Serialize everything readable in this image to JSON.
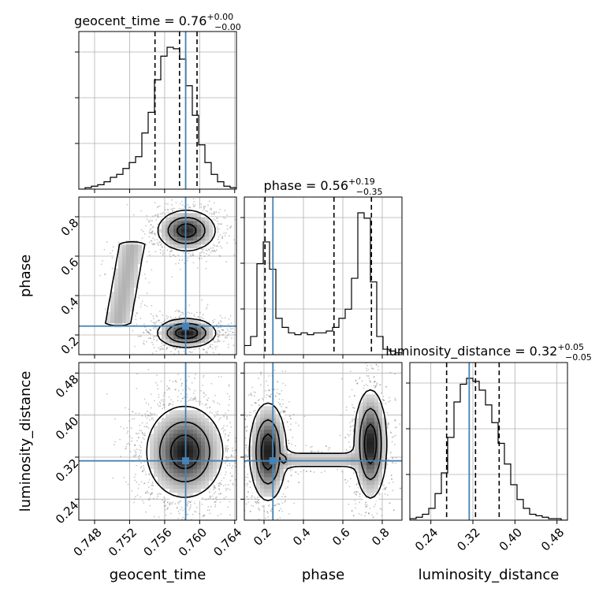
{
  "chart_data": {
    "type": "corner",
    "parameters": [
      {
        "name": "geocent_time",
        "axis_label": "geocent_time",
        "title": "geocent_time = 0.76",
        "title_plus": "+0.00",
        "title_minus": "−0.00",
        "range": [
          0.7462,
          0.7642
        ],
        "ticks": [
          0.748,
          0.752,
          0.756,
          0.76,
          0.764
        ],
        "tick_labels": [
          "0.748",
          "0.752",
          "0.756",
          "0.760",
          "0.764"
        ],
        "truth": 0.7584,
        "quantiles": [
          0.7549,
          0.7577,
          0.7597
        ],
        "hist_bins": 25,
        "hist_counts": [
          0,
          1,
          2,
          3,
          5,
          8,
          10,
          14,
          18,
          22,
          38,
          52,
          74,
          90,
          96,
          95,
          88,
          70,
          50,
          30,
          18,
          10,
          5,
          2,
          1
        ]
      },
      {
        "name": "phase",
        "axis_label": "phase",
        "title": "phase = 0.56",
        "title_plus": "+0.19",
        "title_minus": "−0.35",
        "range": [
          0.1,
          0.9
        ],
        "ticks": [
          0.2,
          0.4,
          0.6,
          0.8
        ],
        "tick_labels": [
          "0.2",
          "0.4",
          "0.6",
          "0.8"
        ],
        "truth": 0.245,
        "quantiles": [
          0.205,
          0.555,
          0.745
        ],
        "hist_bins": 25,
        "hist_counts": [
          5,
          10,
          50,
          62,
          47,
          20,
          15,
          12,
          11,
          12,
          11,
          12,
          12,
          13,
          15,
          20,
          25,
          42,
          78,
          75,
          40,
          10,
          3,
          2,
          1
        ]
      },
      {
        "name": "luminosity_distance",
        "axis_label": "luminosity_distance",
        "title": "luminosity_distance = 0.32",
        "title_plus": "+0.05",
        "title_minus": "−0.05",
        "range": [
          0.2,
          0.5
        ],
        "ticks": [
          0.24,
          0.32,
          0.4,
          0.48
        ],
        "tick_labels": [
          "0.24",
          "0.32",
          "0.40",
          "0.48"
        ],
        "truth": 0.313,
        "quantiles": [
          0.27,
          0.325,
          0.37
        ],
        "hist_bins": 25,
        "hist_counts": [
          1,
          2,
          4,
          8,
          18,
          32,
          56,
          80,
          92,
          96,
          94,
          88,
          78,
          66,
          52,
          38,
          24,
          14,
          8,
          4,
          3,
          2,
          1,
          1,
          0
        ]
      }
    ],
    "joint": [
      {
        "x": "geocent_time",
        "y": "phase",
        "modes": [
          {
            "x": 0.7585,
            "y": 0.73,
            "sx": 0.0016,
            "sy": 0.05,
            "w": 1.0
          },
          {
            "x": 0.7585,
            "y": 0.21,
            "sx": 0.0016,
            "sy": 0.035,
            "w": 1.1
          }
        ],
        "bridge": {
          "x": 0.7515,
          "y0": 0.25,
          "y1": 0.68,
          "sx": 0.001,
          "w": 0.35
        }
      },
      {
        "x": "geocent_time",
        "y": "luminosity_distance",
        "modes": [
          {
            "x": 0.7583,
            "y": 0.33,
            "sx": 0.0021,
            "sy": 0.042,
            "w": 1.0
          }
        ]
      },
      {
        "x": "phase",
        "y": "luminosity_distance",
        "modes": [
          {
            "x": 0.22,
            "y": 0.33,
            "sx": 0.045,
            "sy": 0.045,
            "w": 1.0
          },
          {
            "x": 0.74,
            "y": 0.345,
            "sx": 0.04,
            "sy": 0.05,
            "w": 1.0
          }
        ],
        "bridge": {
          "y": 0.315,
          "x0": 0.28,
          "x1": 0.68,
          "sy": 0.009,
          "w": 0.3
        }
      }
    ],
    "truth_color": "#4682b4",
    "grid": true
  }
}
